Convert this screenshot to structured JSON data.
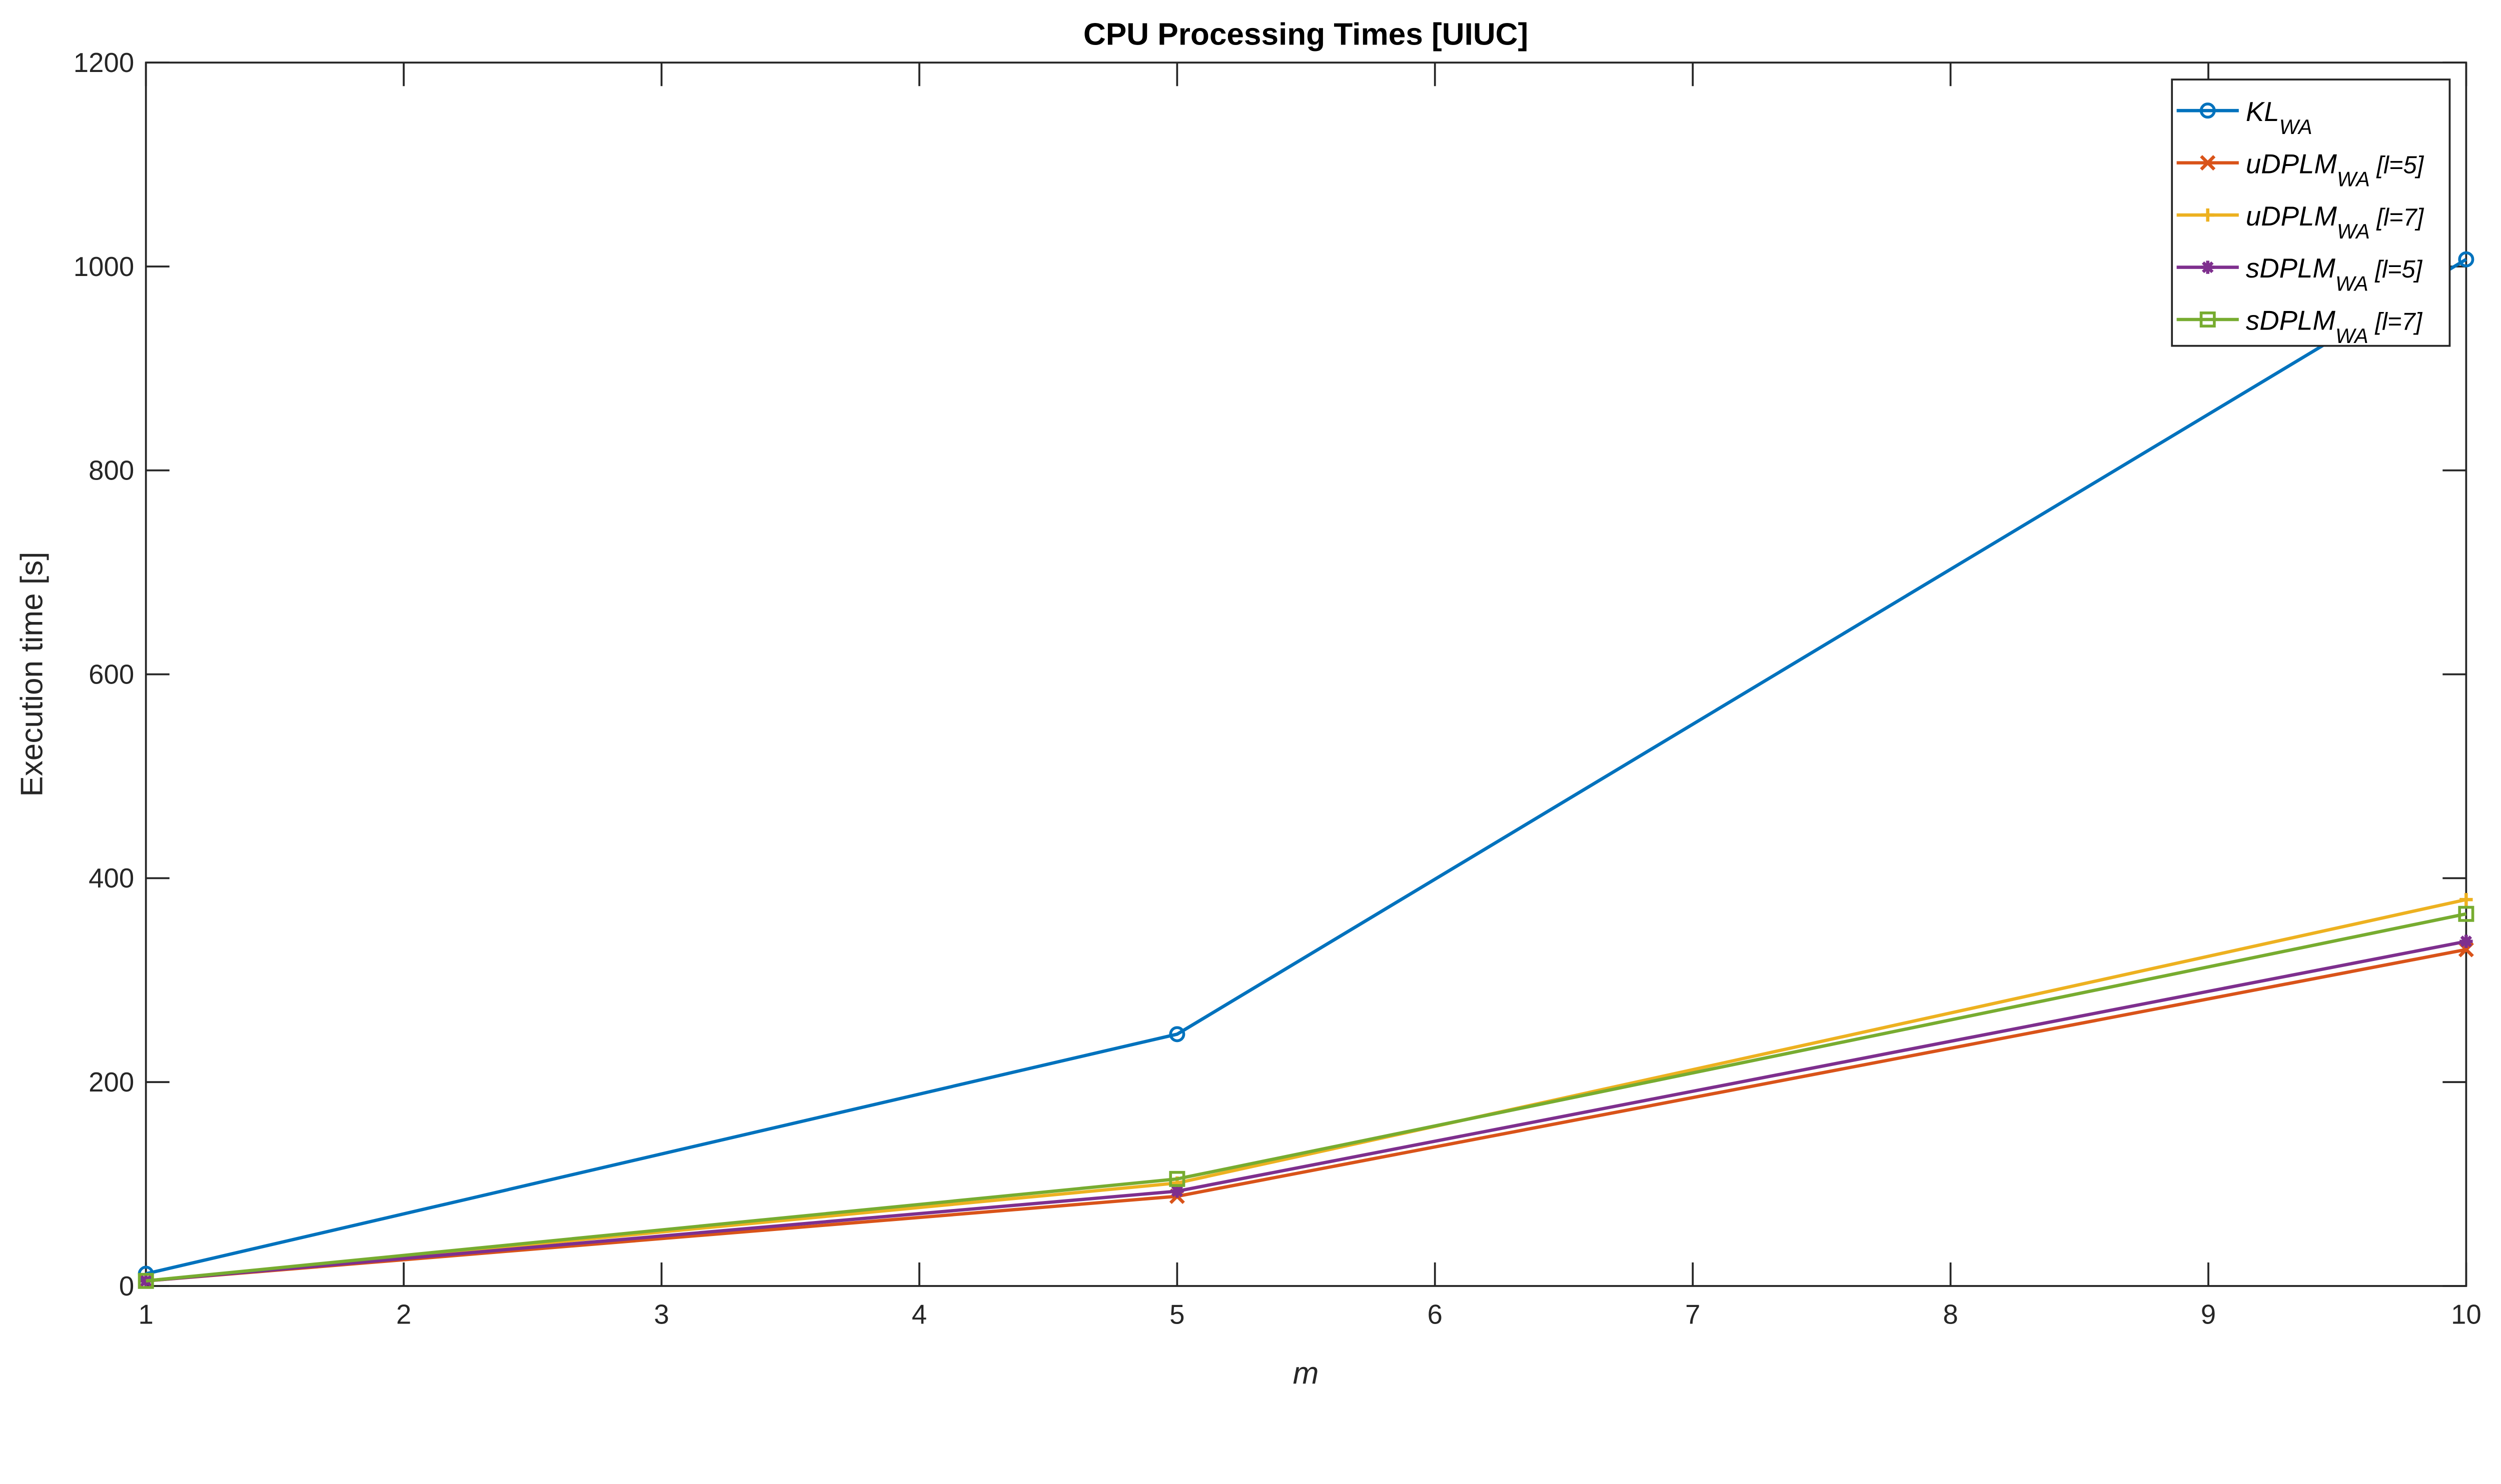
{
  "chart_data": {
    "type": "line",
    "title": "CPU Processing Times [UIUC]",
    "xlabel": "m",
    "ylabel": "Execution time [s]",
    "xlim": [
      1,
      10
    ],
    "ylim": [
      0,
      1200
    ],
    "xticks": [
      1,
      2,
      3,
      4,
      5,
      6,
      7,
      8,
      9,
      10
    ],
    "yticks": [
      0,
      200,
      400,
      600,
      800,
      1000,
      1200
    ],
    "grid": false,
    "legend_position": "top-right",
    "x": [
      1,
      5,
      10
    ],
    "series": [
      {
        "name": "KL",
        "sub": "WA",
        "suffix": "",
        "color": "#0072BD",
        "marker": "circle",
        "values": [
          12,
          247,
          1007
        ]
      },
      {
        "name": "uDPLM",
        "sub": "WA",
        "suffix": "[l=5]",
        "color": "#D95319",
        "marker": "x",
        "values": [
          5,
          88,
          330
        ]
      },
      {
        "name": "uDPLM",
        "sub": "WA",
        "suffix": "[l=7]",
        "color": "#EDB120",
        "marker": "plus",
        "values": [
          5,
          101,
          379
        ]
      },
      {
        "name": "sDPLM",
        "sub": "WA",
        "suffix": "[l=5]",
        "color": "#7E2F8E",
        "marker": "asterisk",
        "values": [
          5,
          93,
          338
        ]
      },
      {
        "name": "sDPLM",
        "sub": "WA",
        "suffix": "[l=7]",
        "color": "#77AC30",
        "marker": "square",
        "values": [
          5,
          105,
          365
        ]
      }
    ]
  }
}
